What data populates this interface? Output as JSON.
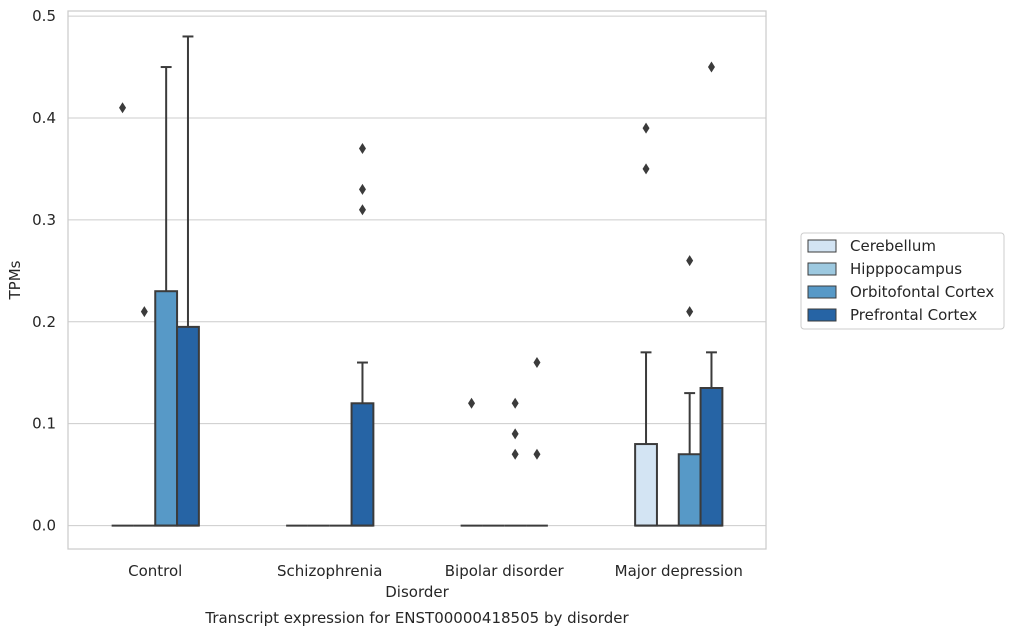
{
  "chart_data": {
    "type": "box",
    "title": "Transcript expression for ENST00000418505 by disorder",
    "xlabel": "Disorder",
    "ylabel": "TPMs",
    "categories": [
      "Control",
      "Schizophrenia",
      "Bipolar disorder",
      "Major depression"
    ],
    "ylim": [
      -0.023,
      0.505
    ],
    "yticks": [
      0.0,
      0.1,
      0.2,
      0.3,
      0.4,
      0.5
    ],
    "ytick_labels": [
      "0.0",
      "0.1",
      "0.2",
      "0.3",
      "0.4",
      "0.5"
    ],
    "grid": "horizontal",
    "legend_position": "right",
    "series": [
      {
        "name": "Cerebellum",
        "color": "#d3e4f3",
        "boxes": [
          {
            "q1": 0,
            "median": 0,
            "q3": 0,
            "whisker_low": 0,
            "whisker_high": 0,
            "outliers": [
              0.41
            ]
          },
          {
            "q1": 0,
            "median": 0,
            "q3": 0,
            "whisker_low": 0,
            "whisker_high": 0,
            "outliers": []
          },
          {
            "q1": 0,
            "median": 0,
            "q3": 0,
            "whisker_low": 0,
            "whisker_high": 0,
            "outliers": [
              0.12
            ]
          },
          {
            "q1": 0,
            "median": 0,
            "q3": 0.08,
            "whisker_low": 0,
            "whisker_high": 0.17,
            "outliers": [
              0.35,
              0.39
            ]
          }
        ]
      },
      {
        "name": "Hipppocampus",
        "color": "#9dc9e0",
        "boxes": [
          {
            "q1": 0,
            "median": 0,
            "q3": 0,
            "whisker_low": 0,
            "whisker_high": 0,
            "outliers": [
              0.21
            ]
          },
          {
            "q1": 0,
            "median": 0,
            "q3": 0,
            "whisker_low": 0,
            "whisker_high": 0,
            "outliers": []
          },
          {
            "q1": 0,
            "median": 0,
            "q3": 0,
            "whisker_low": 0,
            "whisker_high": 0,
            "outliers": []
          },
          {
            "q1": 0,
            "median": 0,
            "q3": 0,
            "whisker_low": 0,
            "whisker_high": 0,
            "outliers": []
          }
        ]
      },
      {
        "name": "Orbitofontal Cortex",
        "color": "#5799c7",
        "boxes": [
          {
            "q1": 0,
            "median": 0,
            "q3": 0.23,
            "whisker_low": 0,
            "whisker_high": 0.45,
            "outliers": []
          },
          {
            "q1": 0,
            "median": 0,
            "q3": 0,
            "whisker_low": 0,
            "whisker_high": 0,
            "outliers": []
          },
          {
            "q1": 0,
            "median": 0,
            "q3": 0,
            "whisker_low": 0,
            "whisker_high": 0,
            "outliers": [
              0.07,
              0.09,
              0.12
            ]
          },
          {
            "q1": 0,
            "median": 0,
            "q3": 0.07,
            "whisker_low": 0,
            "whisker_high": 0.13,
            "outliers": [
              0.21,
              0.26
            ]
          }
        ]
      },
      {
        "name": "Prefrontal Cortex",
        "color": "#2664a5",
        "boxes": [
          {
            "q1": 0,
            "median": 0,
            "q3": 0.195,
            "whisker_low": 0,
            "whisker_high": 0.48,
            "outliers": []
          },
          {
            "q1": 0,
            "median": 0,
            "q3": 0.12,
            "whisker_low": 0,
            "whisker_high": 0.16,
            "outliers": [
              0.31,
              0.33,
              0.37
            ]
          },
          {
            "q1": 0,
            "median": 0,
            "q3": 0,
            "whisker_low": 0,
            "whisker_high": 0,
            "outliers": [
              0.07,
              0.16
            ]
          },
          {
            "q1": 0,
            "median": 0,
            "q3": 0.135,
            "whisker_low": 0,
            "whisker_high": 0.17,
            "outliers": [
              0.45
            ]
          }
        ]
      }
    ]
  }
}
